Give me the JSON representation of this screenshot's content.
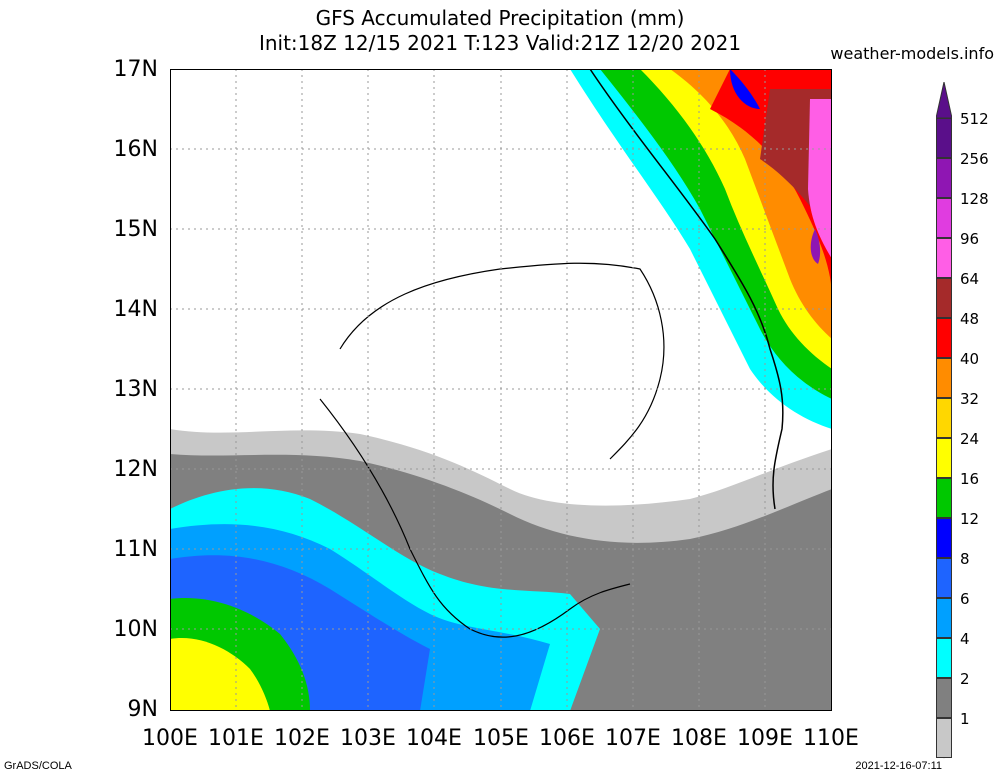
{
  "title": {
    "line1": "GFS Accumulated Precipitation (mm)",
    "line2": "Init:18Z 12/15 2021 T:123 Valid:21Z 12/20 2021"
  },
  "site": "weather-models.info",
  "footer": {
    "left": "GrADS/COLA",
    "right": "2021-12-16-07:11"
  },
  "axes": {
    "lat_labels": [
      "17N",
      "16N",
      "15N",
      "14N",
      "13N",
      "12N",
      "11N",
      "10N",
      "9N"
    ],
    "lon_labels": [
      "100E",
      "101E",
      "102E",
      "103E",
      "104E",
      "105E",
      "106E",
      "107E",
      "108E",
      "109E",
      "110E"
    ]
  },
  "colorbar": {
    "levels": [
      "512",
      "256",
      "128",
      "96",
      "64",
      "48",
      "40",
      "32",
      "24",
      "16",
      "12",
      "8",
      "6",
      "4",
      "2",
      "1"
    ],
    "colors": [
      "#5a0f8a",
      "#8f16b3",
      "#e03ce0",
      "#ff5ee6",
      "#a52a2a",
      "#ff0000",
      "#ff8c00",
      "#ffd700",
      "#ffff00",
      "#00c800",
      "#0000ff",
      "#1e64ff",
      "#00a0ff",
      "#00ffff",
      "#808080",
      "#c8c8c8"
    ]
  }
}
